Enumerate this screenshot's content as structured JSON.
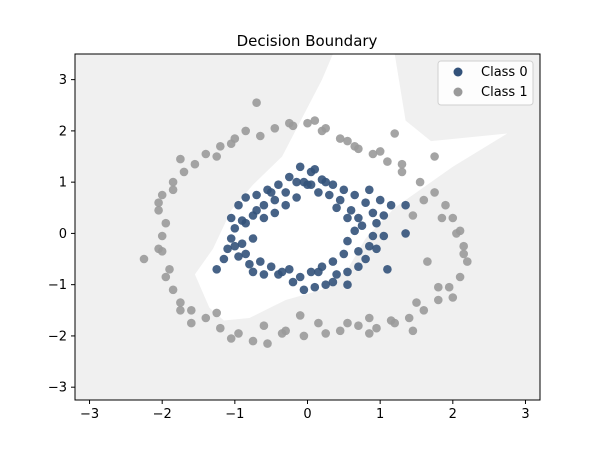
{
  "chart_data": {
    "type": "scatter",
    "title": "Decision Boundary",
    "xlabel": "",
    "ylabel": "",
    "xlim": [
      -3.2,
      3.2
    ],
    "ylim": [
      -3.25,
      3.5
    ],
    "xticks": [
      -3,
      -2,
      -1,
      0,
      1,
      2,
      3
    ],
    "yticks": [
      -3,
      -2,
      -1,
      0,
      1,
      2,
      3
    ],
    "grid": false,
    "legend_position": "top-right",
    "background_region_color": "#f0f0f0",
    "inner_region_color": "#ffffff",
    "inner_region": [
      [
        -1.55,
        -0.8
      ],
      [
        -1.3,
        -0.3
      ],
      [
        -1.05,
        0.45
      ],
      [
        -0.75,
        0.95
      ],
      [
        -0.35,
        1.5
      ],
      [
        0.2,
        3.0
      ],
      [
        0.35,
        3.5
      ],
      [
        1.2,
        3.5
      ],
      [
        1.35,
        2.2
      ],
      [
        1.7,
        1.8
      ],
      [
        2.75,
        1.95
      ],
      [
        2.0,
        1.3
      ],
      [
        1.2,
        0.5
      ],
      [
        0.8,
        -0.1
      ],
      [
        0.55,
        -0.7
      ],
      [
        0.2,
        -1.1
      ],
      [
        -0.3,
        -1.3
      ],
      [
        -0.8,
        -1.65
      ],
      [
        -1.15,
        -1.7
      ],
      [
        -1.35,
        -1.45
      ]
    ],
    "series": [
      {
        "name": "Class 0",
        "color": "#33527a",
        "points": [
          [
            -1.25,
            -0.7
          ],
          [
            -1.15,
            -0.5
          ],
          [
            -1.1,
            -0.3
          ],
          [
            -1.05,
            -0.1
          ],
          [
            -1.0,
            0.1
          ],
          [
            -1.05,
            0.3
          ],
          [
            -0.95,
            0.55
          ],
          [
            -0.85,
            0.7
          ],
          [
            -0.7,
            0.75
          ],
          [
            -0.55,
            0.85
          ],
          [
            -0.4,
            0.95
          ],
          [
            -0.25,
            1.1
          ],
          [
            -0.1,
            1.3
          ],
          [
            0.05,
            1.2
          ],
          [
            0.2,
            1.05
          ],
          [
            0.35,
            0.95
          ],
          [
            0.5,
            0.85
          ],
          [
            0.65,
            0.75
          ],
          [
            0.8,
            0.6
          ],
          [
            0.9,
            0.4
          ],
          [
            0.95,
            0.2
          ],
          [
            0.9,
            -0.05
          ],
          [
            0.85,
            -0.25
          ],
          [
            0.8,
            -0.5
          ],
          [
            0.7,
            -0.65
          ],
          [
            0.55,
            -0.75
          ],
          [
            0.4,
            -0.8
          ],
          [
            0.25,
            -1.0
          ],
          [
            0.1,
            -1.05
          ],
          [
            -0.05,
            -1.1
          ],
          [
            -0.2,
            -0.95
          ],
          [
            -0.35,
            -0.75
          ],
          [
            -0.5,
            -0.65
          ],
          [
            -0.65,
            -0.55
          ],
          [
            -0.8,
            -0.6
          ],
          [
            -0.95,
            -0.45
          ],
          [
            -0.9,
            -0.2
          ],
          [
            -0.75,
            -0.1
          ],
          [
            -0.6,
            0.55
          ],
          [
            -0.45,
            0.65
          ],
          [
            -0.3,
            0.55
          ],
          [
            -0.15,
            0.7
          ],
          [
            0.0,
            0.95
          ],
          [
            0.15,
            0.8
          ],
          [
            0.3,
            0.75
          ],
          [
            0.45,
            0.65
          ],
          [
            0.6,
            0.45
          ],
          [
            0.7,
            0.3
          ],
          [
            0.65,
            0.05
          ],
          [
            0.55,
            -0.15
          ],
          [
            0.5,
            -0.4
          ],
          [
            0.35,
            -0.55
          ],
          [
            0.2,
            -0.65
          ],
          [
            0.05,
            -0.75
          ],
          [
            -0.1,
            -0.85
          ],
          [
            -0.25,
            -0.7
          ],
          [
            -0.4,
            -0.8
          ],
          [
            -0.6,
            -0.8
          ],
          [
            -0.75,
            -0.75
          ],
          [
            -0.85,
            -0.4
          ],
          [
            -1.0,
            -0.25
          ],
          [
            -0.9,
            0.25
          ],
          [
            -0.75,
            0.35
          ],
          [
            -0.6,
            0.3
          ],
          [
            -0.45,
            0.4
          ],
          [
            -0.3,
            0.8
          ],
          [
            -0.15,
            1.0
          ],
          [
            0.1,
            1.25
          ],
          [
            0.25,
            1.0
          ],
          [
            0.4,
            0.5
          ],
          [
            0.55,
            0.3
          ],
          [
            0.75,
            0.15
          ],
          [
            0.85,
            0.85
          ],
          [
            1.0,
            0.65
          ],
          [
            0.95,
            -0.3
          ],
          [
            0.7,
            -0.35
          ],
          [
            0.35,
            -0.95
          ],
          [
            0.55,
            -1.0
          ],
          [
            -0.5,
            0.8
          ],
          [
            -0.85,
            0.2
          ],
          [
            0.15,
            -0.75
          ],
          [
            -0.05,
            1.0
          ],
          [
            1.05,
            0.35
          ],
          [
            1.15,
            0.55
          ],
          [
            1.35,
            0.55
          ],
          [
            1.35,
            0.0
          ],
          [
            1.05,
            -0.05
          ],
          [
            1.1,
            -0.7
          ],
          [
            0.05,
            0.95
          ],
          [
            -0.7,
            0.45
          ]
        ]
      },
      {
        "name": "Class 1",
        "color": "#9a9a9a",
        "points": [
          [
            -2.25,
            -0.5
          ],
          [
            -2.05,
            -0.3
          ],
          [
            -2.0,
            -0.05
          ],
          [
            -1.95,
            0.2
          ],
          [
            -2.05,
            0.45
          ],
          [
            -2.0,
            0.75
          ],
          [
            -1.85,
            1.0
          ],
          [
            -1.7,
            1.2
          ],
          [
            -1.55,
            1.35
          ],
          [
            -1.4,
            1.55
          ],
          [
            -1.2,
            1.7
          ],
          [
            -1.0,
            1.85
          ],
          [
            -0.85,
            2.0
          ],
          [
            -0.65,
            1.9
          ],
          [
            -0.45,
            2.05
          ],
          [
            -0.2,
            2.1
          ],
          [
            0.0,
            2.15
          ],
          [
            0.2,
            2.0
          ],
          [
            0.45,
            1.85
          ],
          [
            0.65,
            1.7
          ],
          [
            0.9,
            1.55
          ],
          [
            1.1,
            1.4
          ],
          [
            1.3,
            1.2
          ],
          [
            1.55,
            1.0
          ],
          [
            1.75,
            0.8
          ],
          [
            1.9,
            0.55
          ],
          [
            2.0,
            0.3
          ],
          [
            2.1,
            0.05
          ],
          [
            2.15,
            -0.25
          ],
          [
            2.2,
            -0.55
          ],
          [
            2.1,
            -0.85
          ],
          [
            1.95,
            -1.05
          ],
          [
            1.8,
            -1.3
          ],
          [
            1.6,
            -1.5
          ],
          [
            1.4,
            -1.65
          ],
          [
            1.2,
            -1.75
          ],
          [
            0.95,
            -1.85
          ],
          [
            0.7,
            -1.8
          ],
          [
            0.45,
            -1.9
          ],
          [
            0.25,
            -1.95
          ],
          [
            -0.05,
            -2.0
          ],
          [
            -0.3,
            -1.9
          ],
          [
            -0.55,
            -2.15
          ],
          [
            -0.75,
            -2.1
          ],
          [
            -0.95,
            -1.95
          ],
          [
            -1.2,
            -1.85
          ],
          [
            -1.4,
            -1.65
          ],
          [
            -1.6,
            -1.5
          ],
          [
            -1.75,
            -1.35
          ],
          [
            -1.85,
            -1.1
          ],
          [
            -1.95,
            -0.85
          ],
          [
            -2.05,
            0.6
          ],
          [
            -1.85,
            0.85
          ],
          [
            -1.75,
            1.45
          ],
          [
            -1.05,
            1.75
          ],
          [
            -0.7,
            2.55
          ],
          [
            -0.25,
            2.15
          ],
          [
            0.1,
            2.2
          ],
          [
            0.25,
            2.05
          ],
          [
            0.55,
            1.8
          ],
          [
            0.7,
            1.65
          ],
          [
            1.0,
            1.6
          ],
          [
            1.3,
            1.35
          ],
          [
            1.75,
            1.5
          ],
          [
            1.6,
            0.65
          ],
          [
            1.45,
            0.35
          ],
          [
            1.85,
            0.3
          ],
          [
            2.05,
            0.0
          ],
          [
            1.65,
            -0.55
          ],
          [
            2.15,
            -0.4
          ],
          [
            1.8,
            -1.05
          ],
          [
            2.0,
            -1.25
          ],
          [
            1.45,
            -1.9
          ],
          [
            1.15,
            -1.7
          ],
          [
            1.5,
            -1.35
          ],
          [
            -0.1,
            -1.6
          ],
          [
            0.15,
            -1.75
          ],
          [
            -0.6,
            -1.8
          ],
          [
            -1.05,
            -2.05
          ],
          [
            -1.25,
            -1.55
          ],
          [
            -1.6,
            -1.75
          ],
          [
            -1.75,
            -1.5
          ],
          [
            -2.0,
            -0.35
          ],
          [
            -1.9,
            -0.7
          ],
          [
            -1.25,
            1.5
          ],
          [
            1.2,
            1.95
          ],
          [
            0.85,
            -1.65
          ],
          [
            0.55,
            -1.75
          ],
          [
            -0.35,
            -1.95
          ],
          [
            0.85,
            -1.95
          ]
        ]
      }
    ]
  }
}
